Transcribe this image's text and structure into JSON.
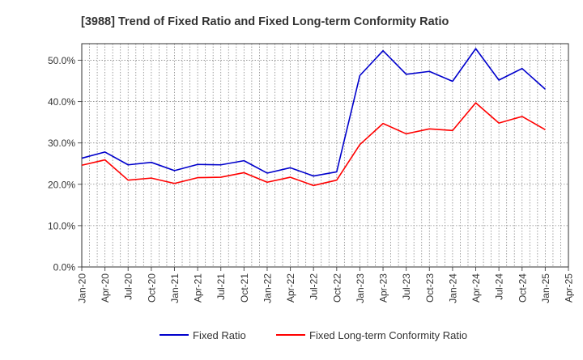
{
  "chart_data": {
    "type": "line",
    "title": "[3988]  Trend of Fixed Ratio and Fixed Long-term Conformity Ratio",
    "xlabel": "",
    "ylabel": "",
    "ylim": [
      0,
      54
    ],
    "y_ticks": [
      "0.0%",
      "10.0%",
      "20.0%",
      "30.0%",
      "40.0%",
      "50.0%"
    ],
    "y_tick_values": [
      0,
      10,
      20,
      30,
      40,
      50
    ],
    "x_tick_labels": [
      "Jan-20",
      "Apr-20",
      "Jul-20",
      "Oct-20",
      "Jan-21",
      "Apr-21",
      "Jul-21",
      "Oct-21",
      "Jan-22",
      "Apr-22",
      "Jul-22",
      "Oct-22",
      "Jan-23",
      "Apr-23",
      "Jul-23",
      "Oct-23",
      "Jan-24",
      "Apr-24",
      "Jul-24",
      "Oct-24",
      "Jan-25",
      "Apr-25"
    ],
    "x": [
      "Jan-20",
      "Apr-20",
      "Jul-20",
      "Oct-20",
      "Jan-21",
      "Apr-21",
      "Jul-21",
      "Oct-21",
      "Jan-22",
      "Apr-22",
      "Jul-22",
      "Oct-22",
      "Jan-23",
      "Apr-23",
      "Jul-23",
      "Oct-23",
      "Jan-24",
      "Apr-24",
      "Jul-24",
      "Oct-24",
      "Jan-25"
    ],
    "grid": true,
    "legend_position": "bottom",
    "series": [
      {
        "name": "Fixed Ratio",
        "color": "#0000cc",
        "values": [
          26.3,
          27.8,
          24.7,
          25.3,
          23.3,
          24.8,
          24.7,
          25.7,
          22.7,
          24.0,
          22.0,
          23.0,
          46.3,
          52.3,
          46.6,
          47.3,
          44.9,
          52.8,
          45.2,
          48.0,
          43.0
        ]
      },
      {
        "name": "Fixed Long-term Conformity Ratio",
        "color": "#ff0000",
        "values": [
          24.6,
          25.9,
          21.0,
          21.5,
          20.2,
          21.6,
          21.7,
          22.8,
          20.5,
          21.7,
          19.7,
          21.0,
          29.6,
          34.7,
          32.2,
          33.4,
          33.0,
          39.7,
          34.8,
          36.4,
          33.2
        ]
      }
    ]
  }
}
